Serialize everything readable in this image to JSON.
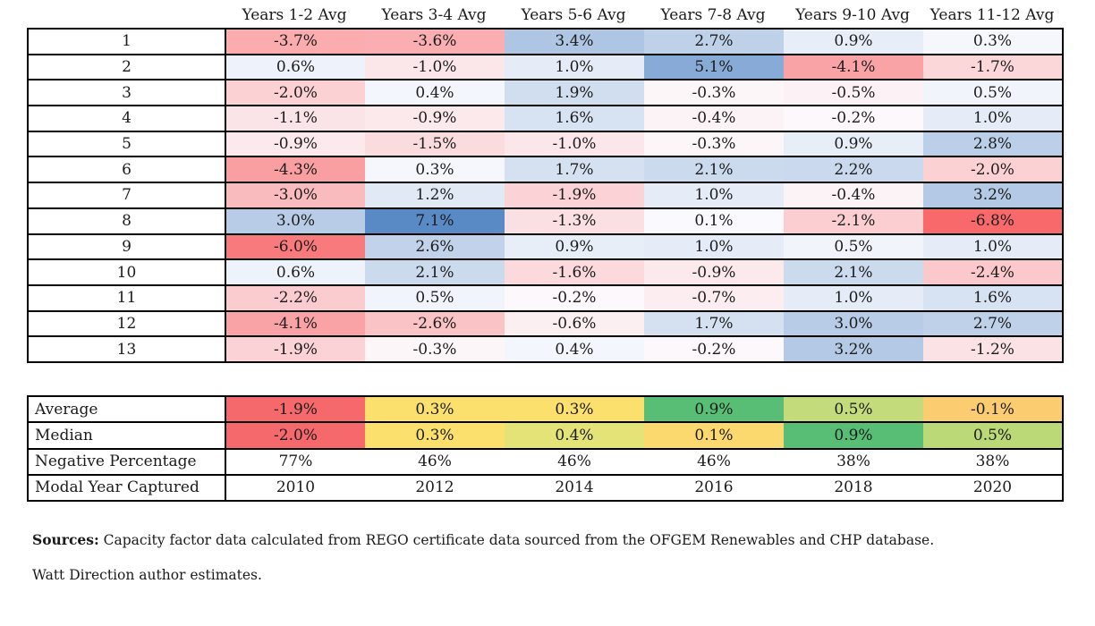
{
  "chart_data": {
    "type": "heatmap",
    "columns": [
      "Years 1-2 Avg",
      "Years 3-4 Avg",
      "Years 5-6 Avg",
      "Years 7-8 Avg",
      "Years 9-10 Avg",
      "Years 11-12 Avg"
    ],
    "row_labels": [
      "1",
      "2",
      "3",
      "4",
      "5",
      "6",
      "7",
      "8",
      "9",
      "10",
      "11",
      "12",
      "13"
    ],
    "unit": "%",
    "values": [
      [
        -3.7,
        -3.6,
        3.4,
        2.7,
        0.9,
        0.3
      ],
      [
        0.6,
        -1.0,
        1.0,
        5.1,
        -4.1,
        -1.7
      ],
      [
        -2.0,
        0.4,
        1.9,
        -0.3,
        -0.5,
        0.5
      ],
      [
        -1.1,
        -0.9,
        1.6,
        -0.4,
        -0.2,
        1.0
      ],
      [
        -0.9,
        -1.5,
        -1.0,
        -0.3,
        0.9,
        2.8
      ],
      [
        -4.3,
        0.3,
        1.7,
        2.1,
        2.2,
        -2.0
      ],
      [
        -3.0,
        1.2,
        -1.9,
        1.0,
        -0.4,
        3.2
      ],
      [
        3.0,
        7.1,
        -1.3,
        0.1,
        -2.1,
        -6.8
      ],
      [
        -6.0,
        2.6,
        0.9,
        1.0,
        0.5,
        1.0
      ],
      [
        0.6,
        2.1,
        -1.6,
        -0.9,
        2.1,
        -2.4
      ],
      [
        -2.2,
        0.5,
        -0.2,
        -0.7,
        1.0,
        1.6
      ],
      [
        -4.1,
        -2.6,
        -0.6,
        1.7,
        3.0,
        2.7
      ],
      [
        -1.9,
        -0.3,
        0.4,
        -0.2,
        3.2,
        -1.2
      ]
    ],
    "cell_colors": [
      [
        "#FAACAF",
        "#FAAEB1",
        "#AEC5E4",
        "#BED1E9",
        "#E7EEF8",
        "#F5F7FD"
      ],
      [
        "#EEF2FA",
        "#FBE6E9",
        "#E5ECF7",
        "#88AAD6",
        "#FAA3A6",
        "#FBD7DA"
      ],
      [
        "#FBD1D3",
        "#F3F6FC",
        "#D1DEF0",
        "#FCF6F9",
        "#FCF1F4",
        "#F1F4FB"
      ],
      [
        "#FBE4E7",
        "#FBE9EB",
        "#D7E2F2",
        "#FCF3F6",
        "#FCF8FB",
        "#E5ECF7"
      ],
      [
        "#FBE9EB",
        "#FBDCDE",
        "#FBE6E9",
        "#FCF6F9",
        "#E7EEF8",
        "#BCCFE9"
      ],
      [
        "#F99FA1",
        "#F5F7FD",
        "#D5E1F1",
        "#CCDAEE",
        "#CAD9ED",
        "#FBD1D3"
      ],
      [
        "#FABBBE",
        "#E1E9F5",
        "#FBD3D6",
        "#E5ECF7",
        "#FCF3F6",
        "#B3C9E5"
      ],
      [
        "#B8CCE7",
        "#5A8AC6",
        "#FBE0E3",
        "#FAFAFE",
        "#FBCFD1",
        "#F8696B"
      ],
      [
        "#F87A7C",
        "#C1D2EA",
        "#E7EEF8",
        "#E5ECF7",
        "#F1F4FB",
        "#E5ECF7"
      ],
      [
        "#EEF2FA",
        "#CCDAEE",
        "#FBD9DC",
        "#FBE9EB",
        "#CCDAEE",
        "#FBC8CB"
      ],
      [
        "#FBCCCF",
        "#F1F4FB",
        "#FCF8FB",
        "#FCEDF0",
        "#E5ECF7",
        "#D7E2F2"
      ],
      [
        "#FAA3A6",
        "#FAC4C6",
        "#FCEFF2",
        "#D5E1F1",
        "#B8CCE7",
        "#BED1E9"
      ],
      [
        "#FBD3D6",
        "#FCF6F9",
        "#F3F6FC",
        "#FCF8FB",
        "#B3C9E5",
        "#FBE2E5"
      ]
    ],
    "color_scale": {
      "negative": "#F8696B",
      "neutral": "#FCFCFF",
      "positive": "#5A8AC6",
      "domain": [
        -6.8,
        0,
        7.1
      ]
    },
    "summary_rows": [
      {
        "label": "Average",
        "values": [
          -1.9,
          0.3,
          0.3,
          0.9,
          0.5,
          -0.1
        ],
        "numeric": true,
        "colors": [
          "#F5696C",
          "#FBE06E",
          "#FBE06E",
          "#58BE75",
          "#C3DB7A",
          "#FBCC70"
        ]
      },
      {
        "label": "Median",
        "values": [
          -2.0,
          0.3,
          0.4,
          0.1,
          0.9,
          0.5
        ],
        "numeric": true,
        "colors": [
          "#F5696C",
          "#FBE06E",
          "#E3E378",
          "#FBD96F",
          "#58BE75",
          "#BCD977"
        ]
      },
      {
        "label": "Negative Percentage",
        "values": [
          "77%",
          "46%",
          "46%",
          "46%",
          "38%",
          "38%"
        ],
        "numeric": false,
        "colors": null
      },
      {
        "label": "Modal Year Captured",
        "values": [
          "2010",
          "2012",
          "2014",
          "2016",
          "2018",
          "2020"
        ],
        "numeric": false,
        "colors": null
      }
    ],
    "summary_color_scale": {
      "low": "#F8696B",
      "mid": "#FFEB84",
      "high": "#63BE7B"
    }
  },
  "footer": {
    "sources_label": "Sources:",
    "sources_text": " Capacity factor data calculated from REGO certificate data sourced from the OFGEM Renewables and CHP database.",
    "line2": "Watt Direction author estimates."
  }
}
